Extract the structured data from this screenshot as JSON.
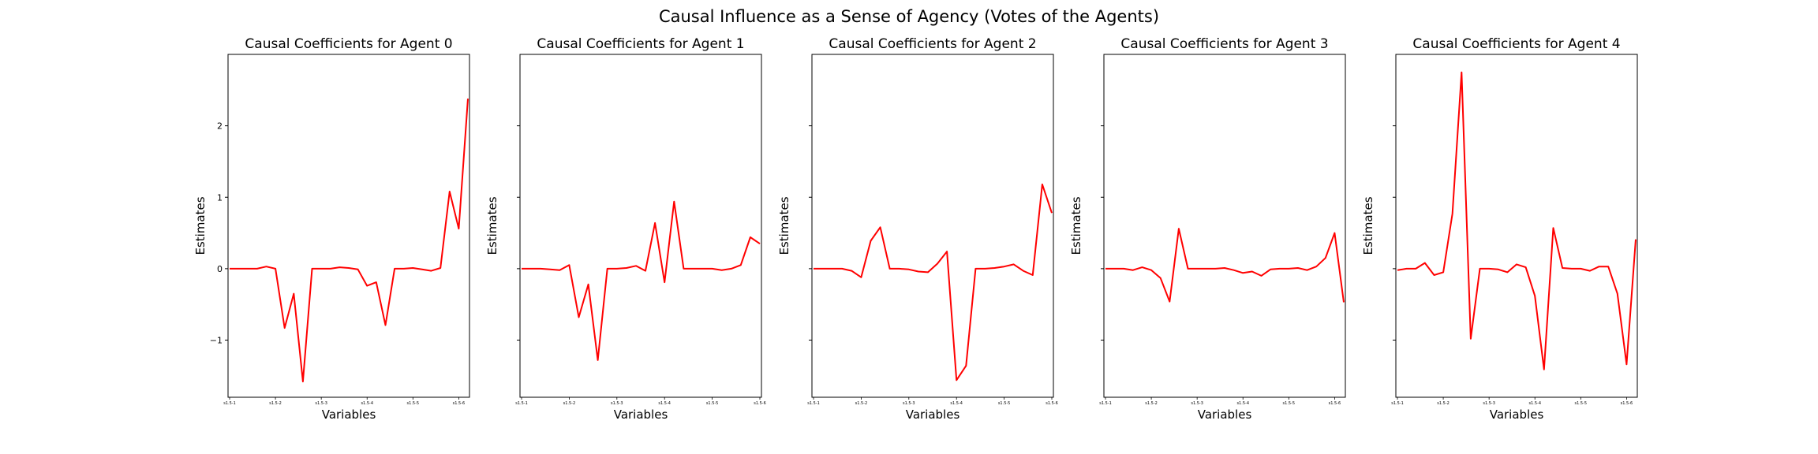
{
  "suptitle": "Causal Influence as a Sense of Agency (Votes of the Agents)",
  "colors": {
    "line": "#ff0000",
    "axes": "#000000",
    "background": "#ffffff"
  },
  "chart_data": [
    {
      "type": "line",
      "title": "Causal Coefficients for Agent 0",
      "xlabel": "Variables",
      "ylabel": "Estimates",
      "ylim": [
        -1.8,
        3.0
      ],
      "yticks": [
        -1,
        0,
        1,
        2
      ],
      "xtick_labels": [
        "s1.5-1",
        "s1.5-2",
        "s1.5-3",
        "s1.5-4",
        "s1.5-5",
        "s1.5-6"
      ],
      "xtick_positions": [
        0,
        5,
        10,
        15,
        20,
        25
      ],
      "grid": false,
      "series": [
        {
          "values": [
            0.0,
            0.0,
            0.0,
            0.0,
            0.03,
            0.0,
            -0.83,
            -0.35,
            -1.58,
            0.0,
            0.0,
            0.0,
            0.02,
            0.01,
            -0.01,
            -0.24,
            -0.19,
            -0.79,
            0.0,
            0.0,
            0.01,
            -0.01,
            -0.03,
            0.01,
            1.08,
            0.56,
            2.38
          ]
        }
      ]
    },
    {
      "type": "line",
      "title": "Causal Coefficients for Agent 1",
      "xlabel": "Variables",
      "ylabel": "Estimates",
      "ylim": [
        -1.8,
        3.0
      ],
      "yticks": [
        -1,
        0,
        1,
        2
      ],
      "xtick_labels": [
        "s1.5-1",
        "s1.5-2",
        "s1.5-3",
        "s1.5-4",
        "s1.5-5",
        "s1.5-6"
      ],
      "xtick_positions": [
        0,
        5,
        10,
        15,
        20,
        25
      ],
      "grid": false,
      "series": [
        {
          "values": [
            0.0,
            0.0,
            0.0,
            -0.01,
            -0.02,
            0.05,
            -0.68,
            -0.22,
            -1.28,
            0.0,
            0.0,
            0.01,
            0.04,
            -0.03,
            0.64,
            -0.19,
            0.94,
            0.0,
            0.0,
            0.0,
            0.0,
            -0.02,
            0.0,
            0.05,
            0.44,
            0.35
          ]
        }
      ]
    },
    {
      "type": "line",
      "title": "Causal Coefficients for Agent 2",
      "xlabel": "Variables",
      "ylabel": "Estimates",
      "ylim": [
        -1.8,
        3.0
      ],
      "yticks": [
        -1,
        0,
        1,
        2
      ],
      "xtick_labels": [
        "s1.5-1",
        "s1.5-2",
        "s1.5-3",
        "s1.5-4",
        "s1.5-5",
        "s1.5-6"
      ],
      "xtick_positions": [
        0,
        5,
        10,
        15,
        20,
        25
      ],
      "grid": false,
      "series": [
        {
          "values": [
            0.0,
            0.0,
            0.0,
            0.0,
            -0.03,
            -0.12,
            0.39,
            0.58,
            0.0,
            0.0,
            -0.01,
            -0.04,
            -0.05,
            0.07,
            0.24,
            -1.56,
            -1.36,
            0.0,
            0.0,
            0.01,
            0.03,
            0.06,
            -0.03,
            -0.09,
            1.18,
            0.78
          ]
        }
      ]
    },
    {
      "type": "line",
      "title": "Causal Coefficients for Agent 3",
      "xlabel": "Variables",
      "ylabel": "Estimates",
      "ylim": [
        -1.8,
        3.0
      ],
      "yticks": [
        -1,
        0,
        1,
        2
      ],
      "xtick_labels": [
        "s1.5-1",
        "s1.5-2",
        "s1.5-3",
        "s1.5-4",
        "s1.5-5",
        "s1.5-6"
      ],
      "xtick_positions": [
        0,
        5,
        10,
        15,
        20,
        25
      ],
      "grid": false,
      "series": [
        {
          "values": [
            0.0,
            0.0,
            0.0,
            -0.02,
            0.02,
            -0.02,
            -0.13,
            -0.46,
            0.56,
            0.0,
            0.0,
            0.0,
            0.0,
            0.01,
            -0.02,
            -0.06,
            -0.04,
            -0.1,
            -0.01,
            0.0,
            0.0,
            0.01,
            -0.02,
            0.03,
            0.15,
            0.5,
            -0.47
          ]
        }
      ]
    },
    {
      "type": "line",
      "title": "Causal Coefficients for Agent 4",
      "xlabel": "Variables",
      "ylabel": "Estimates",
      "ylim": [
        -1.8,
        3.0
      ],
      "yticks": [
        -1,
        0,
        1,
        2
      ],
      "xtick_labels": [
        "s1.5-1",
        "s1.5-2",
        "s1.5-3",
        "s1.5-4",
        "s1.5-5",
        "s1.5-6"
      ],
      "xtick_positions": [
        0,
        5,
        10,
        15,
        20,
        25
      ],
      "grid": false,
      "series": [
        {
          "values": [
            -0.02,
            0.0,
            0.0,
            0.08,
            -0.09,
            -0.05,
            0.77,
            2.75,
            -0.98,
            0.0,
            0.0,
            -0.01,
            -0.05,
            0.06,
            0.02,
            -0.38,
            -1.41,
            0.57,
            0.01,
            0.0,
            0.0,
            -0.03,
            0.03,
            0.03,
            -0.35,
            -1.34,
            0.41
          ]
        }
      ]
    }
  ]
}
